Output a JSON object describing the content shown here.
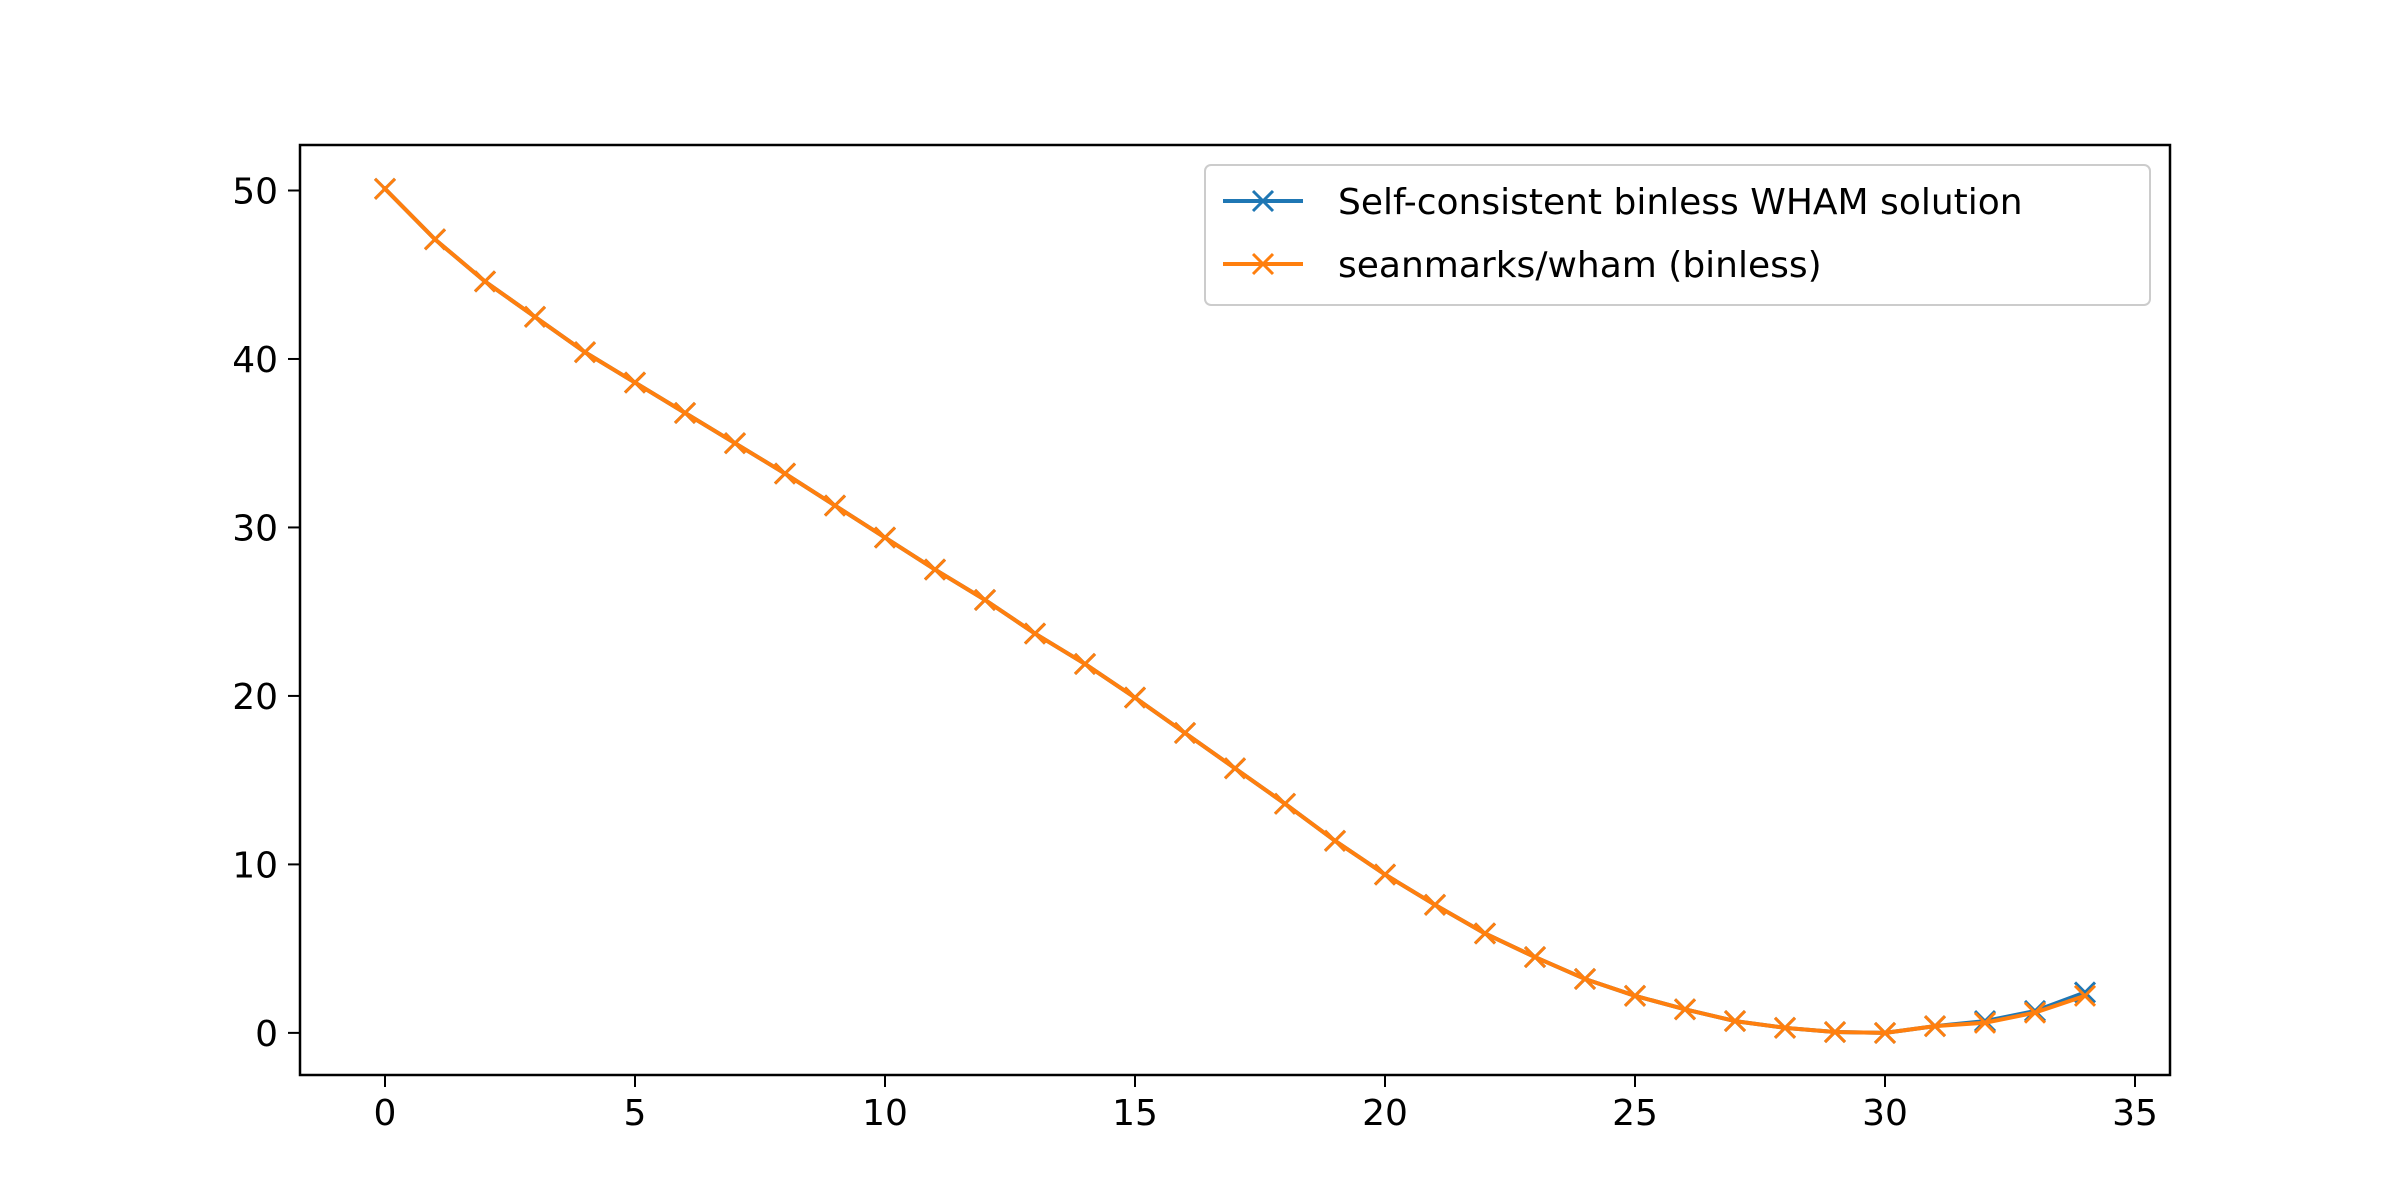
{
  "chart_data": {
    "type": "line",
    "title": "",
    "xlabel": "",
    "ylabel": "",
    "xlim": [
      -1.7,
      35.7
    ],
    "ylim": [
      -2.5,
      52.7
    ],
    "xticks": [
      0,
      5,
      10,
      15,
      20,
      25,
      30,
      35
    ],
    "yticks": [
      0,
      10,
      20,
      30,
      40,
      50
    ],
    "xtick_labels": [
      "0",
      "5",
      "10",
      "15",
      "20",
      "25",
      "30",
      "35"
    ],
    "ytick_labels": [
      "0",
      "10",
      "20",
      "30",
      "40",
      "50"
    ],
    "grid": false,
    "legend_position": "top-right",
    "x": [
      0,
      1,
      2,
      3,
      4,
      5,
      6,
      7,
      8,
      9,
      10,
      11,
      12,
      13,
      14,
      15,
      16,
      17,
      18,
      19,
      20,
      21,
      22,
      23,
      24,
      25,
      26,
      27,
      28,
      29,
      30,
      31,
      32,
      33,
      34
    ],
    "series": [
      {
        "name": "Self-consistent binless WHAM solution",
        "color": "#1f77b4",
        "marker": "x",
        "values": [
          50.1,
          47.1,
          44.6,
          42.5,
          40.4,
          38.6,
          36.8,
          35.0,
          33.2,
          31.3,
          29.4,
          27.5,
          25.7,
          23.7,
          21.9,
          19.9,
          17.8,
          15.7,
          13.6,
          11.4,
          9.4,
          7.6,
          5.9,
          4.5,
          3.2,
          2.2,
          1.4,
          0.7,
          0.3,
          0.05,
          0.0,
          0.4,
          0.7,
          1.3,
          2.4
        ]
      },
      {
        "name": "seanmarks/wham (binless)",
        "color": "#ff7f0e",
        "marker": "x",
        "values": [
          50.1,
          47.1,
          44.6,
          42.5,
          40.4,
          38.6,
          36.8,
          35.0,
          33.2,
          31.3,
          29.4,
          27.5,
          25.7,
          23.7,
          21.9,
          19.9,
          17.8,
          15.7,
          13.6,
          11.4,
          9.4,
          7.6,
          5.9,
          4.5,
          3.2,
          2.2,
          1.4,
          0.7,
          0.3,
          0.05,
          0.0,
          0.4,
          0.6,
          1.2,
          2.2
        ]
      }
    ]
  }
}
